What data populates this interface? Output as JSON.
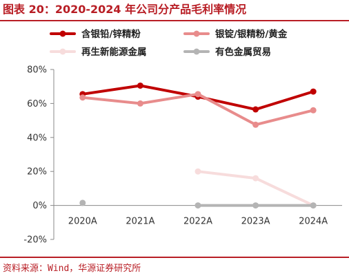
{
  "title": "图表 20：2020-2024 年公司分产品毛利率情况",
  "source": "资料来源：Wind，华源证券研究所",
  "colors": {
    "accent": "#b81d24"
  },
  "chart_data": {
    "type": "line",
    "x": [
      "2020A",
      "2021A",
      "2022A",
      "2023A",
      "2024A"
    ],
    "ylim": [
      -20,
      80
    ],
    "y_ticks": [
      "80%",
      "60%",
      "40%",
      "20%",
      "0%",
      "-20%"
    ],
    "y_tick_values": [
      80,
      60,
      40,
      20,
      0,
      -20
    ],
    "y_unit": "%",
    "grid": false,
    "legend_position": "top",
    "series": [
      {
        "name": "含银铅/锌精粉",
        "color": "#c00000",
        "values": [
          65.5,
          70.5,
          64,
          56.5,
          67
        ]
      },
      {
        "name": "银锭/银精粉/黄金",
        "color": "#e88c8c",
        "values": [
          63.5,
          60,
          65.5,
          47.5,
          56
        ]
      },
      {
        "name": "再生新能源金属",
        "color": "#f7dcdc",
        "values": [
          null,
          null,
          20,
          16,
          0
        ]
      },
      {
        "name": "有色金属贸易",
        "color": "#b4b4b4",
        "values": [
          1.5,
          null,
          0,
          0,
          0
        ]
      }
    ]
  }
}
